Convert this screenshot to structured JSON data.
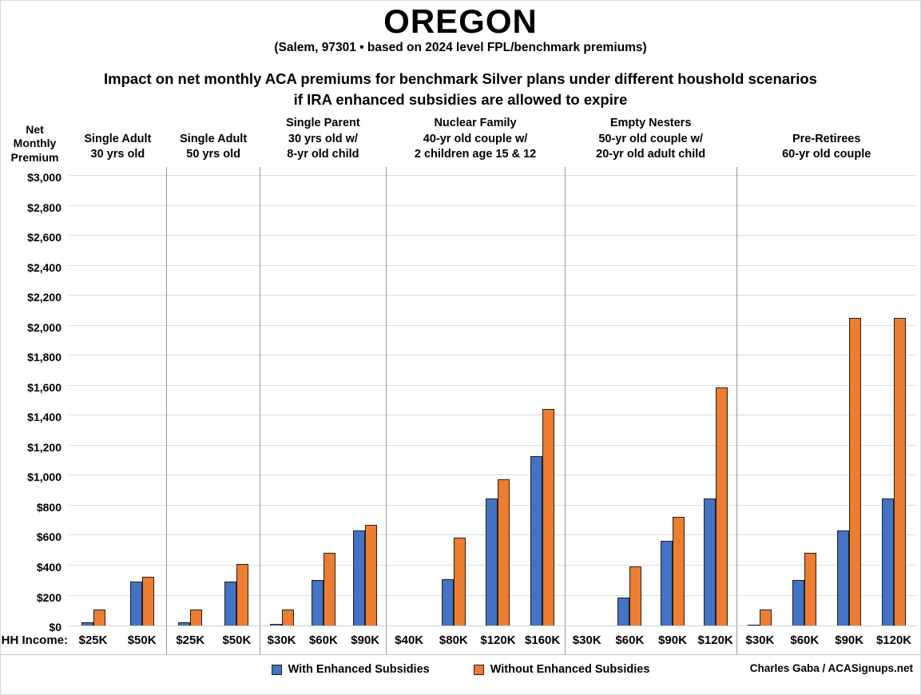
{
  "title": "OREGON",
  "subtitle": "(Salem, 97301 • based on 2024 level FPL/benchmark premiums)",
  "headline_line1": "Impact on net monthly ACA premiums for benchmark Silver plans under different houshold scenarios",
  "headline_line2": "if IRA enhanced subsidies are allowed to expire",
  "y_axis_title_lines": [
    "Net",
    "Monthly",
    "Premium"
  ],
  "hh_income_label": "HH Income:",
  "credit": "Charles Gaba / ACASignups.net",
  "colors": {
    "with_enhanced": "#4472C4",
    "without_enhanced": "#ED7D31",
    "bar_outline": "#1f1f1f",
    "gridline": "#dcdcdc",
    "panel_separator": "#9a9a9a"
  },
  "chart_data": {
    "type": "bar",
    "title": "Impact on net monthly ACA premiums for benchmark Silver plans under different houshold scenarios if IRA enhanced subsidies are allowed to expire",
    "ylabel": "Net Monthly Premium",
    "xlabel": "HH Income",
    "ylim": [
      0,
      3000
    ],
    "ytick_step": 200,
    "ytick_prefix": "$",
    "grid": true,
    "legend_position": "bottom",
    "legend": [
      {
        "name": "With Enhanced Subsidies",
        "color": "#4472C4"
      },
      {
        "name": "Without Enhanced Subsidies",
        "color": "#ED7D31"
      }
    ],
    "panels": [
      {
        "title_lines": [
          "Single Adult",
          "30 yrs old"
        ],
        "flex": 123,
        "categories": [
          "$25K",
          "$50K"
        ],
        "with_enhanced": [
          20,
          295
        ],
        "without_enhanced": [
          105,
          325
        ]
      },
      {
        "title_lines": [
          "Single Adult",
          "50 yrs old"
        ],
        "flex": 117,
        "categories": [
          "$25K",
          "$50K"
        ],
        "with_enhanced": [
          20,
          295
        ],
        "without_enhanced": [
          105,
          410
        ]
      },
      {
        "title_lines": [
          "Single Parent",
          "30 yrs old w/",
          "8-yr old child"
        ],
        "flex": 158,
        "categories": [
          "$30K",
          "$60K",
          "$90K"
        ],
        "with_enhanced": [
          10,
          305,
          635
        ],
        "without_enhanced": [
          105,
          485,
          670
        ]
      },
      {
        "title_lines": [
          "Nuclear Family",
          "40-yr old couple w/",
          "2 children age 15 & 12"
        ],
        "flex": 224,
        "categories": [
          "$40K",
          "$80K",
          "$120K",
          "$160K"
        ],
        "with_enhanced": [
          0,
          310,
          845,
          1130
        ],
        "without_enhanced": [
          0,
          585,
          975,
          1445
        ]
      },
      {
        "title_lines": [
          "Empty Nesters",
          "50-yr old couple w/",
          "20-yr old adult child"
        ],
        "flex": 216,
        "categories": [
          "$30K",
          "$60K",
          "$90K",
          "$120K"
        ],
        "with_enhanced": [
          0,
          185,
          565,
          845
        ],
        "without_enhanced": [
          0,
          395,
          725,
          1590
        ]
      },
      {
        "title_lines": [
          "Pre-Retirees",
          "60-yr old couple"
        ],
        "flex": 225,
        "categories": [
          "$30K",
          "$60K",
          "$90K",
          "$120K"
        ],
        "with_enhanced": [
          5,
          305,
          635,
          845
        ],
        "without_enhanced": [
          105,
          485,
          2050,
          2050
        ]
      }
    ]
  }
}
